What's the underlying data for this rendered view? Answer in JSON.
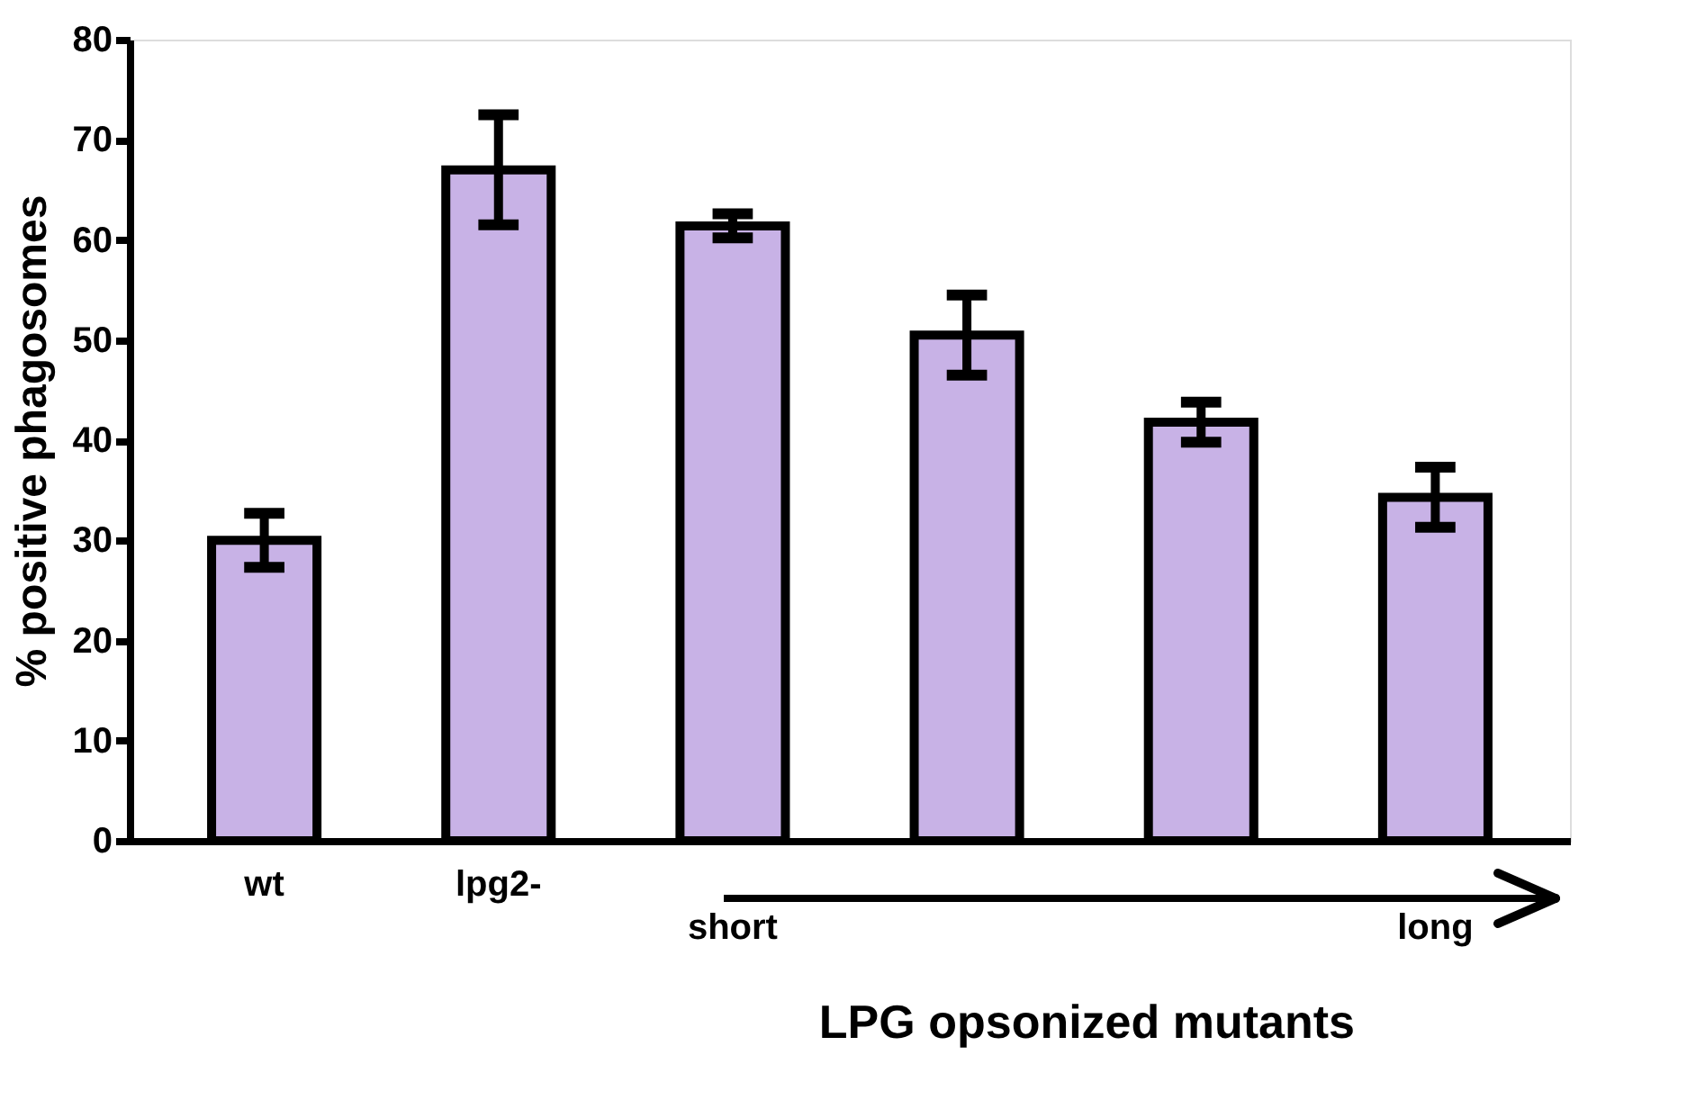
{
  "chart_data": {
    "type": "bar",
    "xlabel": "LPG opsonized mutants",
    "ylabel": "% positive phagosomes",
    "categories": [
      "wt",
      "lpg2-",
      "short",
      null,
      null,
      "long"
    ],
    "values": [
      30,
      67,
      61.4,
      50.5,
      41.8,
      34.3
    ],
    "errors": [
      2.7,
      5.5,
      1.2,
      4,
      2,
      3
    ],
    "color": "#c8b2e6",
    "ylim": [
      0,
      80
    ],
    "yticks": [
      0,
      10,
      20,
      30,
      40,
      50,
      60,
      70,
      80
    ],
    "grid": false
  }
}
